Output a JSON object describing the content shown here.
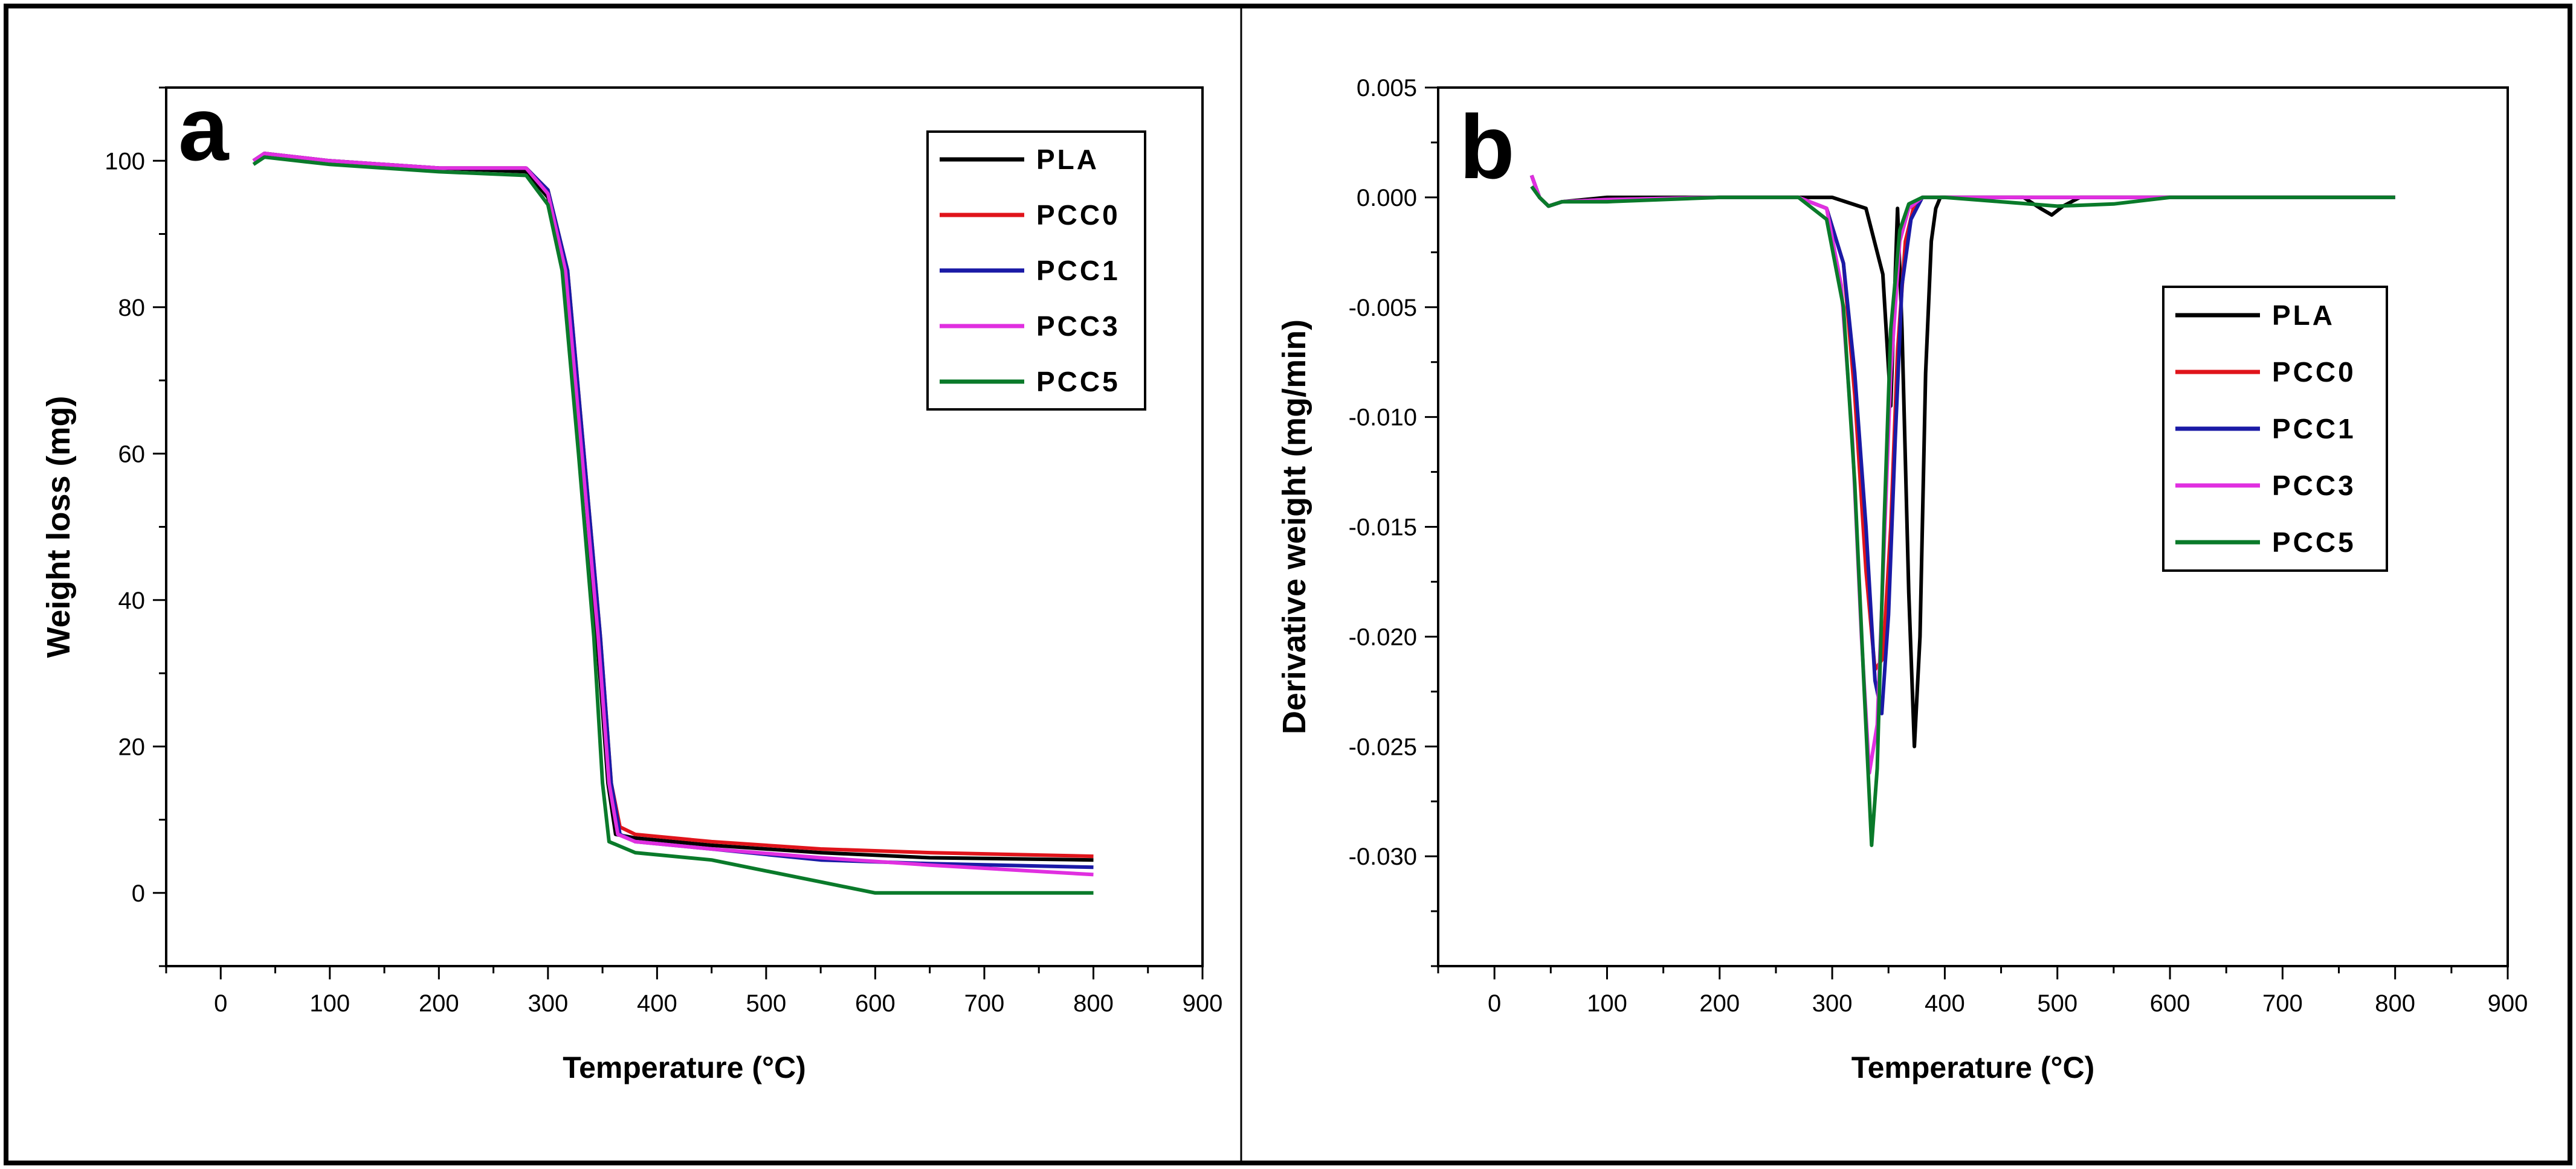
{
  "figure": {
    "panels": [
      "a",
      "b"
    ]
  },
  "colors": {
    "PLA": "#000000",
    "PCC0": "#e0141b",
    "PCC1": "#1a1aa6",
    "PCC3": "#e02fe0",
    "PCC5": "#0a7a2a"
  },
  "chart_data": [
    {
      "type": "line",
      "panel_label": "a",
      "title": "",
      "xlabel": "Temperature (°C)",
      "ylabel": "Weight loss (mg)",
      "xlim": [
        -50,
        900
      ],
      "ylim": [
        -10,
        110
      ],
      "xticks": [
        0,
        100,
        200,
        300,
        400,
        500,
        600,
        700,
        800,
        900
      ],
      "yticks": [
        0,
        20,
        40,
        60,
        80,
        100
      ],
      "grid": false,
      "legend_position": "top-right",
      "series": [
        {
          "name": "PLA",
          "color": "#000000",
          "x": [
            30,
            40,
            100,
            200,
            280,
            300,
            315,
            330,
            345,
            355,
            362,
            380,
            450,
            550,
            650,
            800
          ],
          "y": [
            100,
            101,
            100,
            99,
            98.5,
            95,
            85,
            60,
            35,
            15,
            8,
            7.5,
            6.5,
            5.5,
            4.8,
            4.5
          ]
        },
        {
          "name": "PCC0",
          "color": "#e0141b",
          "x": [
            30,
            40,
            100,
            200,
            280,
            300,
            318,
            333,
            348,
            358,
            366,
            380,
            450,
            550,
            650,
            800
          ],
          "y": [
            100,
            101,
            100,
            99,
            99,
            96,
            85,
            60,
            35,
            15,
            9,
            8,
            7,
            6,
            5.5,
            5
          ]
        },
        {
          "name": "PCC1",
          "color": "#1a1aa6",
          "x": [
            30,
            40,
            100,
            200,
            280,
            300,
            318,
            333,
            348,
            358,
            366,
            380,
            450,
            550,
            650,
            800
          ],
          "y": [
            100,
            101,
            100,
            99,
            99,
            96,
            85,
            60,
            35,
            15,
            8,
            7,
            6,
            4.5,
            4,
            3.5
          ]
        },
        {
          "name": "PCC3",
          "color": "#e02fe0",
          "x": [
            30,
            40,
            100,
            200,
            280,
            300,
            316,
            331,
            346,
            356,
            364,
            380,
            450,
            550,
            650,
            800
          ],
          "y": [
            100,
            101,
            100,
            99,
            99,
            95.5,
            85,
            60,
            35,
            15,
            8,
            7,
            6,
            4.8,
            3.8,
            2.5
          ]
        },
        {
          "name": "PCC5",
          "color": "#0a7a2a",
          "x": [
            30,
            40,
            100,
            200,
            280,
            300,
            313,
            328,
            342,
            350,
            356,
            380,
            450,
            500,
            550,
            600,
            800
          ],
          "y": [
            99.5,
            100.5,
            99.5,
            98.5,
            98,
            94,
            85,
            60,
            35,
            15,
            7,
            5.5,
            4.5,
            3,
            1.5,
            0,
            0
          ]
        }
      ]
    },
    {
      "type": "line",
      "panel_label": "b",
      "title": "",
      "xlabel": "Temperature (°C)",
      "ylabel": "Derivative weight (mg/min)",
      "xlim": [
        -50,
        900
      ],
      "ylim": [
        -0.035,
        0.005
      ],
      "xticks": [
        0,
        100,
        200,
        300,
        400,
        500,
        600,
        700,
        800,
        900
      ],
      "yticks": [
        0.005,
        0.0,
        -0.005,
        -0.01,
        -0.015,
        -0.02,
        -0.025,
        -0.03
      ],
      "ytick_labels": [
        "0.005",
        "0.000",
        "-0.005",
        "-0.010",
        "-0.015",
        "-0.020",
        "-0.025",
        "-0.030"
      ],
      "grid": false,
      "legend_position": "right",
      "series": [
        {
          "name": "PLA",
          "color": "#000000",
          "x": [
            33,
            40,
            48,
            60,
            100,
            200,
            300,
            330,
            345,
            352,
            358,
            362,
            368,
            373,
            378,
            383,
            388,
            392,
            396,
            410,
            470,
            485,
            495,
            505,
            520,
            600,
            800
          ],
          "y": [
            0.001,
            0.0,
            -0.0004,
            -0.0002,
            0.0,
            0.0,
            0.0,
            -0.0005,
            -0.0035,
            -0.0095,
            -0.0005,
            -0.006,
            -0.018,
            -0.025,
            -0.02,
            -0.008,
            -0.002,
            -0.0005,
            0.0,
            0.0,
            0.0,
            -0.0005,
            -0.0008,
            -0.0004,
            0.0,
            0.0,
            0.0
          ]
        },
        {
          "name": "PCC0",
          "color": "#e0141b",
          "x": [
            33,
            40,
            48,
            60,
            100,
            200,
            270,
            295,
            310,
            320,
            330,
            338,
            345,
            352,
            358,
            365,
            372,
            380,
            400,
            500,
            600,
            800
          ],
          "y": [
            0.001,
            0.0,
            -0.0004,
            -0.0002,
            -0.0001,
            0.0,
            0.0,
            -0.0005,
            -0.003,
            -0.009,
            -0.017,
            -0.0215,
            -0.021,
            -0.015,
            -0.007,
            -0.002,
            -0.0005,
            0.0,
            0.0,
            0.0,
            0.0,
            0.0
          ]
        },
        {
          "name": "PCC1",
          "color": "#1a1aa6",
          "x": [
            33,
            40,
            48,
            60,
            100,
            200,
            270,
            295,
            310,
            320,
            330,
            338,
            344,
            350,
            356,
            362,
            370,
            380,
            400,
            500,
            600,
            800
          ],
          "y": [
            0.001,
            0.0,
            -0.0004,
            -0.0002,
            -0.0001,
            0.0,
            0.0,
            -0.0005,
            -0.003,
            -0.008,
            -0.015,
            -0.022,
            -0.0235,
            -0.019,
            -0.011,
            -0.004,
            -0.001,
            0.0,
            0.0,
            0.0,
            0.0,
            0.0
          ]
        },
        {
          "name": "PCC3",
          "color": "#e02fe0",
          "x": [
            33,
            40,
            48,
            60,
            100,
            200,
            270,
            295,
            308,
            318,
            326,
            333,
            340,
            346,
            352,
            360,
            368,
            380,
            400,
            500,
            600,
            800
          ],
          "y": [
            0.001,
            0.0,
            -0.0004,
            -0.0002,
            -0.0001,
            0.0,
            0.0,
            -0.0005,
            -0.004,
            -0.011,
            -0.02,
            -0.0262,
            -0.024,
            -0.016,
            -0.008,
            -0.002,
            -0.0005,
            0.0,
            0.0,
            0.0,
            0.0,
            0.0
          ]
        },
        {
          "name": "PCC5",
          "color": "#0a7a2a",
          "x": [
            33,
            40,
            48,
            60,
            100,
            200,
            270,
            295,
            310,
            320,
            328,
            335,
            340,
            346,
            352,
            360,
            368,
            380,
            400,
            450,
            500,
            550,
            600,
            800
          ],
          "y": [
            0.0005,
            0.0,
            -0.0004,
            -0.0002,
            -0.0002,
            0.0,
            0.0,
            -0.001,
            -0.005,
            -0.013,
            -0.022,
            -0.0295,
            -0.026,
            -0.015,
            -0.006,
            -0.0015,
            -0.0003,
            0.0,
            0.0,
            -0.0002,
            -0.0004,
            -0.0003,
            0.0,
            0.0
          ]
        }
      ]
    }
  ]
}
